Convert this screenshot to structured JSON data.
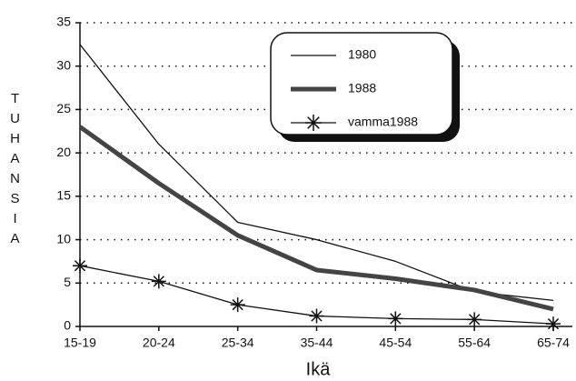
{
  "chart_data": {
    "type": "line",
    "x_label": "Ikä",
    "y_label": "TUHANSIA",
    "categories": [
      "15-19",
      "20-24",
      "25-34",
      "35-44",
      "45-54",
      "55-64",
      "65-74"
    ],
    "series": [
      {
        "name": "1980",
        "color": "#111111",
        "values": [
          32.5,
          21,
          12,
          10,
          7.5,
          4,
          3
        ]
      },
      {
        "name": "1988",
        "color": "#444444",
        "values": [
          23,
          16.5,
          10.5,
          6.5,
          5.5,
          4.2,
          2
        ]
      },
      {
        "name": "vamma1988",
        "color": "#111111",
        "values": [
          7,
          5.2,
          2.5,
          1.2,
          0.9,
          0.8,
          0.3
        ]
      }
    ],
    "ylim": [
      0,
      35
    ],
    "yticks": [
      0,
      5,
      10,
      15,
      20,
      25,
      30,
      35
    ],
    "grid": true
  }
}
